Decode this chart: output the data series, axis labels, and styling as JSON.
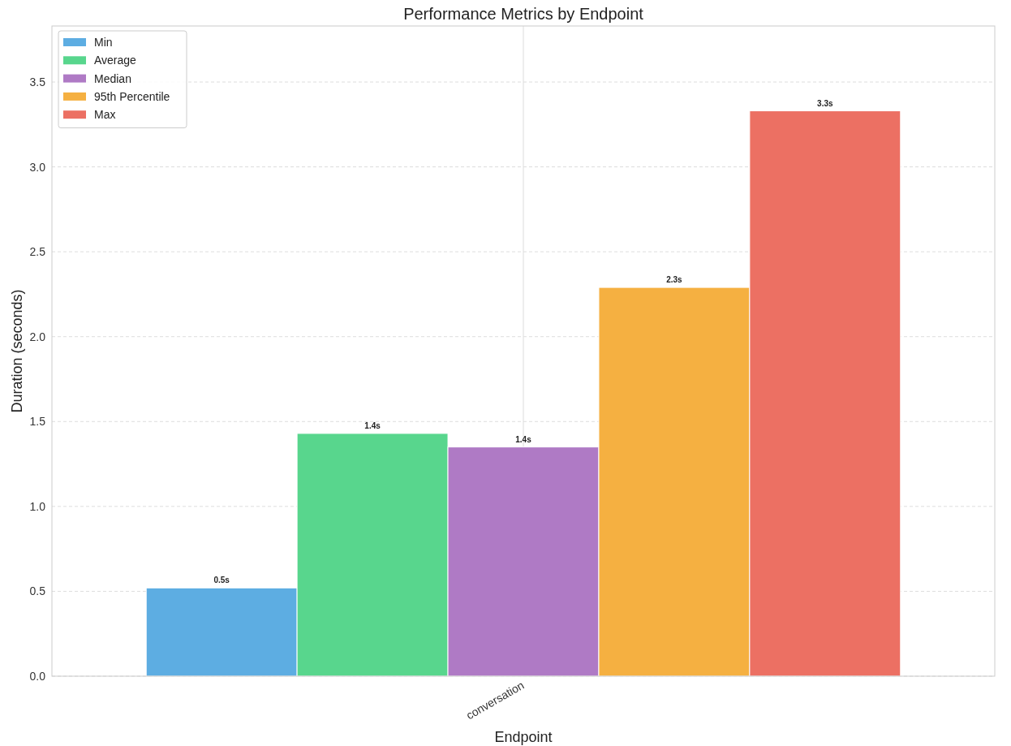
{
  "chart_data": {
    "type": "bar",
    "title": "Performance Metrics by Endpoint",
    "xlabel": "Endpoint",
    "ylabel": "Duration (seconds)",
    "categories": [
      "conversation"
    ],
    "series": [
      {
        "name": "Min",
        "color": "#5dade2",
        "values": [
          0.52
        ],
        "value_labels": [
          "0.5s"
        ]
      },
      {
        "name": "Average",
        "color": "#58d68d",
        "values": [
          1.43
        ],
        "value_labels": [
          "1.4s"
        ]
      },
      {
        "name": "Median",
        "color": "#af7ac5",
        "values": [
          1.35
        ],
        "value_labels": [
          "1.4s"
        ]
      },
      {
        "name": "95th Percentile",
        "color": "#f5b041",
        "values": [
          2.29
        ],
        "value_labels": [
          "2.3s"
        ]
      },
      {
        "name": "Max",
        "color": "#ec7063",
        "values": [
          3.33
        ],
        "value_labels": [
          "3.3s"
        ]
      }
    ],
    "ylim": [
      0,
      3.83
    ],
    "yticks": [
      {
        "value": 0,
        "label": "0.0"
      },
      {
        "value": 0.5,
        "label": "0.5"
      },
      {
        "value": 1,
        "label": "1.0"
      },
      {
        "value": 1.5,
        "label": "1.5"
      },
      {
        "value": 2,
        "label": "2.0"
      },
      {
        "value": 2.5,
        "label": "2.5"
      },
      {
        "value": 3,
        "label": "3.0"
      },
      {
        "value": 3.5,
        "label": "3.5"
      }
    ],
    "grid": "y",
    "legend": "top left",
    "ref_lines": [
      {
        "axis": "x",
        "value": "conversation",
        "color": "#dddddd",
        "line_style": "solid"
      }
    ]
  }
}
